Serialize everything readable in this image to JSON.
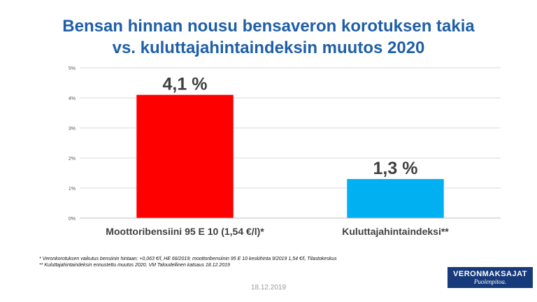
{
  "title_line1": "Bensan hinnan nousu bensaveron korotuksen takia",
  "title_line2": "vs. kuluttajahintaindeksin muutos 2020",
  "chart_data": {
    "type": "bar",
    "categories": [
      "Moottoribensiini 95 E 10 (1,54 €/l)*",
      "Kuluttajahintaindeksi**"
    ],
    "values": [
      4.1,
      1.3
    ],
    "data_labels": [
      "4,1 %",
      "1,3 %"
    ],
    "colors": [
      "#ff0000",
      "#00b0f0"
    ],
    "yticks": [
      "0%",
      "1%",
      "2%",
      "3%",
      "4%",
      "5%"
    ],
    "ylim": [
      0,
      5
    ],
    "grid": true
  },
  "footnotes": [
    "* Veronkorotuksen vaikutus bensiinin hintaan: +0,063 €/l, HE 66/2019; moottoribensiinin 95 E 10 keskihinta 9/2019 1,54 €/l, Tilastokeskus",
    "** Kuluttajahintaindeksin ennustettu muutos 2020, VM Taloudellinen katsaus 18.12.2019"
  ],
  "date": "18.12.2019",
  "logo": {
    "name": "VERONMAKSAJAT",
    "slogan": "Puolenpitoa."
  }
}
